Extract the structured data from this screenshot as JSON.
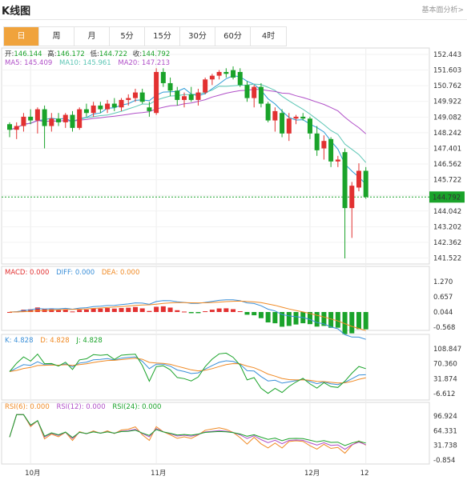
{
  "header": {
    "title": "K线图",
    "link": "基本面分析>"
  },
  "tabs": [
    "日",
    "周",
    "月",
    "5分",
    "15分",
    "30分",
    "60分",
    "4时"
  ],
  "active_tab": 0,
  "ohlc_info": {
    "open_label": "开:",
    "open": "146.144",
    "high_label": "高:",
    "high": "146.172",
    "low_label": "低:",
    "low": "144.722",
    "close_label": "收:",
    "close": "144.792"
  },
  "ma_info": {
    "ma5": "MA5: 145.409",
    "ma10": "MA10: 145.961",
    "ma20": "MA20: 147.213"
  },
  "macd_info": {
    "macd": "MACD: 0.000",
    "diff": "DIFF: 0.000",
    "dea": "DEA: 0.000"
  },
  "kdj_info": {
    "k": "K: 4.828",
    "d": "D: 4.828",
    "j": "J: 4.828"
  },
  "rsi_info": {
    "r6": "RSI(6): 0.000",
    "r12": "RSI(12): 0.000",
    "r24": "RSI(24): 0.000"
  },
  "colors": {
    "up": "#e23131",
    "down": "#1aa32a",
    "ma5": "#2a9bd6",
    "ma10": "#5cc6b5",
    "ma20": "#b04fc8",
    "diff": "#3a8fd8",
    "dea": "#f08a24",
    "accent": "#f0a33c"
  },
  "chart_data": {
    "type": "candlestick",
    "x_labels": [
      {
        "label": "10月",
        "i": 3
      },
      {
        "label": "11月",
        "i": 21
      },
      {
        "label": "12月",
        "i": 43
      },
      {
        "label": "12",
        "i": 51
      }
    ],
    "price_ticks": [
      "152.443",
      "151.603",
      "150.762",
      "149.922",
      "149.082",
      "148.242",
      "147.401",
      "146.562",
      "145.722",
      "144.882",
      "144.042",
      "143.202",
      "142.362",
      "141.522"
    ],
    "price_range": [
      141.522,
      152.443
    ],
    "current_price": "144.792",
    "candles": [
      [
        148.7,
        148.8,
        148.0,
        148.4
      ],
      [
        148.4,
        148.8,
        147.9,
        148.6
      ],
      [
        148.6,
        149.3,
        148.3,
        149.1
      ],
      [
        149.1,
        149.5,
        148.7,
        148.9
      ],
      [
        148.9,
        149.6,
        148.2,
        149.5
      ],
      [
        149.5,
        149.7,
        147.4,
        148.6
      ],
      [
        148.6,
        149.3,
        148.3,
        149.0
      ],
      [
        149.0,
        149.3,
        148.6,
        148.8
      ],
      [
        148.8,
        149.3,
        148.5,
        149.2
      ],
      [
        149.2,
        149.4,
        148.3,
        148.5
      ],
      [
        148.5,
        149.6,
        148.4,
        149.5
      ],
      [
        149.5,
        149.8,
        149.1,
        149.3
      ],
      [
        149.3,
        149.9,
        149.1,
        149.7
      ],
      [
        149.7,
        149.9,
        149.3,
        149.5
      ],
      [
        149.5,
        150.0,
        149.3,
        149.8
      ],
      [
        149.8,
        150.1,
        149.4,
        149.6
      ],
      [
        149.6,
        150.1,
        149.4,
        150.0
      ],
      [
        150.0,
        150.3,
        149.7,
        150.1
      ],
      [
        150.1,
        150.6,
        149.9,
        150.4
      ],
      [
        150.4,
        150.6,
        149.8,
        149.9
      ],
      [
        149.6,
        149.9,
        149.1,
        149.4
      ],
      [
        149.3,
        151.7,
        149.2,
        151.5
      ],
      [
        151.5,
        151.7,
        150.7,
        150.9
      ],
      [
        150.9,
        151.2,
        150.2,
        150.5
      ],
      [
        150.5,
        150.7,
        149.7,
        150.0
      ],
      [
        150.0,
        150.4,
        149.6,
        150.2
      ],
      [
        150.3,
        150.7,
        149.9,
        150.0
      ],
      [
        150.0,
        150.6,
        149.7,
        150.4
      ],
      [
        150.4,
        151.2,
        150.3,
        151.1
      ],
      [
        151.1,
        151.4,
        150.8,
        151.3
      ],
      [
        151.3,
        151.6,
        151.1,
        151.5
      ],
      [
        151.5,
        151.7,
        151.2,
        151.4
      ],
      [
        151.6,
        151.8,
        151.1,
        151.2
      ],
      [
        151.5,
        151.7,
        150.7,
        150.8
      ],
      [
        150.8,
        151.0,
        149.9,
        150.1
      ],
      [
        150.1,
        150.8,
        149.6,
        150.7
      ],
      [
        150.7,
        150.9,
        149.6,
        149.8
      ],
      [
        149.8,
        149.9,
        148.8,
        148.9
      ],
      [
        148.9,
        149.6,
        148.3,
        149.4
      ],
      [
        149.3,
        149.5,
        148.0,
        148.2
      ],
      [
        148.2,
        149.3,
        147.8,
        149.0
      ],
      [
        149.0,
        149.2,
        148.7,
        149.1
      ],
      [
        149.1,
        149.3,
        148.9,
        149.0
      ],
      [
        149.0,
        149.1,
        147.9,
        148.2
      ],
      [
        148.2,
        148.6,
        147.0,
        147.3
      ],
      [
        147.4,
        148.1,
        146.8,
        147.8
      ],
      [
        147.9,
        148.0,
        146.4,
        146.7
      ],
      [
        146.7,
        147.0,
        146.4,
        146.8
      ],
      [
        147.2,
        147.4,
        141.5,
        144.2
      ],
      [
        144.2,
        145.6,
        142.6,
        145.4
      ],
      [
        145.3,
        146.6,
        145.1,
        146.2
      ],
      [
        146.2,
        146.4,
        144.7,
        144.8
      ]
    ],
    "macd_ticks": [
      "1.270",
      "0.657",
      "0.044",
      "-0.568"
    ],
    "kdj_ticks": [
      "108.847",
      "70.360",
      "31.874",
      "-6.612"
    ],
    "rsi_ticks": [
      "96.924",
      "64.331",
      "31.738",
      "-0.854"
    ]
  }
}
